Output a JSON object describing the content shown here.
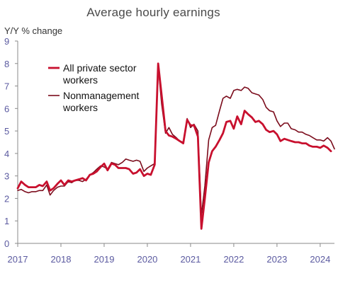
{
  "chart_data": {
    "type": "line",
    "title": "Average hourly earnings",
    "ylabel": "Y/Y % change",
    "xlabel": "",
    "ylim": [
      0,
      9
    ],
    "xlim": [
      2017.0,
      2024.33
    ],
    "y_ticks": [
      "0",
      "1",
      "2",
      "3",
      "4",
      "5",
      "6",
      "7",
      "8",
      "9"
    ],
    "x_ticks": [
      "2017",
      "2018",
      "2019",
      "2020",
      "2021",
      "2022",
      "2023",
      "2024"
    ],
    "grid": false,
    "legend_position": "top-left",
    "series": [
      {
        "name": "All private sector workers",
        "color": "#c8102e",
        "points": [
          [
            2017.0,
            2.45
          ],
          [
            2017.08,
            2.75
          ],
          [
            2017.17,
            2.6
          ],
          [
            2017.25,
            2.5
          ],
          [
            2017.33,
            2.5
          ],
          [
            2017.42,
            2.5
          ],
          [
            2017.5,
            2.6
          ],
          [
            2017.58,
            2.55
          ],
          [
            2017.67,
            2.75
          ],
          [
            2017.75,
            2.35
          ],
          [
            2017.83,
            2.45
          ],
          [
            2017.92,
            2.65
          ],
          [
            2018.0,
            2.8
          ],
          [
            2018.08,
            2.6
          ],
          [
            2018.17,
            2.8
          ],
          [
            2018.25,
            2.75
          ],
          [
            2018.33,
            2.8
          ],
          [
            2018.42,
            2.85
          ],
          [
            2018.5,
            2.9
          ],
          [
            2018.58,
            2.8
          ],
          [
            2018.67,
            3.05
          ],
          [
            2018.75,
            3.1
          ],
          [
            2018.83,
            3.2
          ],
          [
            2018.92,
            3.4
          ],
          [
            2019.0,
            3.55
          ],
          [
            2019.08,
            3.25
          ],
          [
            2019.17,
            3.55
          ],
          [
            2019.25,
            3.5
          ],
          [
            2019.33,
            3.35
          ],
          [
            2019.42,
            3.35
          ],
          [
            2019.5,
            3.35
          ],
          [
            2019.58,
            3.3
          ],
          [
            2019.67,
            3.1
          ],
          [
            2019.75,
            3.15
          ],
          [
            2019.83,
            3.3
          ],
          [
            2019.92,
            3.0
          ],
          [
            2020.0,
            3.1
          ],
          [
            2020.08,
            3.05
          ],
          [
            2020.17,
            3.5
          ],
          [
            2020.25,
            8.0
          ],
          [
            2020.33,
            6.6
          ],
          [
            2020.42,
            5.0
          ],
          [
            2020.5,
            4.8
          ],
          [
            2020.58,
            4.75
          ],
          [
            2020.67,
            4.65
          ],
          [
            2020.75,
            4.55
          ],
          [
            2020.83,
            4.45
          ],
          [
            2020.92,
            5.5
          ],
          [
            2021.0,
            5.25
          ],
          [
            2021.08,
            5.25
          ],
          [
            2021.17,
            4.75
          ],
          [
            2021.25,
            0.65
          ],
          [
            2021.33,
            2.0
          ],
          [
            2021.42,
            3.6
          ],
          [
            2021.5,
            4.1
          ],
          [
            2021.58,
            4.3
          ],
          [
            2021.67,
            4.6
          ],
          [
            2021.75,
            4.9
          ],
          [
            2021.83,
            5.4
          ],
          [
            2021.92,
            5.45
          ],
          [
            2022.0,
            5.1
          ],
          [
            2022.08,
            5.65
          ],
          [
            2022.17,
            5.3
          ],
          [
            2022.25,
            5.9
          ],
          [
            2022.33,
            5.75
          ],
          [
            2022.42,
            5.6
          ],
          [
            2022.5,
            5.4
          ],
          [
            2022.58,
            5.45
          ],
          [
            2022.67,
            5.3
          ],
          [
            2022.75,
            5.05
          ],
          [
            2022.83,
            4.95
          ],
          [
            2022.92,
            5.0
          ],
          [
            2023.0,
            4.85
          ],
          [
            2023.08,
            4.55
          ],
          [
            2023.17,
            4.65
          ],
          [
            2023.25,
            4.6
          ],
          [
            2023.33,
            4.55
          ],
          [
            2023.42,
            4.5
          ],
          [
            2023.5,
            4.5
          ],
          [
            2023.58,
            4.45
          ],
          [
            2023.67,
            4.45
          ],
          [
            2023.75,
            4.35
          ],
          [
            2023.83,
            4.3
          ],
          [
            2023.92,
            4.3
          ],
          [
            2024.0,
            4.25
          ],
          [
            2024.08,
            4.35
          ],
          [
            2024.17,
            4.25
          ],
          [
            2024.25,
            4.1
          ]
        ]
      },
      {
        "name": "Nonmanagement workers",
        "color": "#7b0c1c",
        "points": [
          [
            2017.0,
            2.35
          ],
          [
            2017.08,
            2.4
          ],
          [
            2017.17,
            2.3
          ],
          [
            2017.25,
            2.25
          ],
          [
            2017.33,
            2.3
          ],
          [
            2017.42,
            2.3
          ],
          [
            2017.5,
            2.35
          ],
          [
            2017.58,
            2.35
          ],
          [
            2017.67,
            2.6
          ],
          [
            2017.75,
            2.15
          ],
          [
            2017.83,
            2.35
          ],
          [
            2017.92,
            2.5
          ],
          [
            2018.0,
            2.55
          ],
          [
            2018.08,
            2.55
          ],
          [
            2018.17,
            2.75
          ],
          [
            2018.25,
            2.7
          ],
          [
            2018.33,
            2.8
          ],
          [
            2018.42,
            2.8
          ],
          [
            2018.5,
            2.75
          ],
          [
            2018.58,
            2.85
          ],
          [
            2018.67,
            3.05
          ],
          [
            2018.75,
            3.15
          ],
          [
            2018.83,
            3.3
          ],
          [
            2018.92,
            3.45
          ],
          [
            2019.0,
            3.4
          ],
          [
            2019.08,
            3.3
          ],
          [
            2019.17,
            3.6
          ],
          [
            2019.25,
            3.55
          ],
          [
            2019.33,
            3.5
          ],
          [
            2019.42,
            3.6
          ],
          [
            2019.5,
            3.75
          ],
          [
            2019.58,
            3.7
          ],
          [
            2019.67,
            3.65
          ],
          [
            2019.75,
            3.7
          ],
          [
            2019.83,
            3.65
          ],
          [
            2019.92,
            3.2
          ],
          [
            2020.0,
            3.35
          ],
          [
            2020.08,
            3.45
          ],
          [
            2020.17,
            3.55
          ],
          [
            2020.25,
            7.9
          ],
          [
            2020.33,
            6.2
          ],
          [
            2020.42,
            4.9
          ],
          [
            2020.5,
            5.15
          ],
          [
            2020.58,
            4.85
          ],
          [
            2020.67,
            4.7
          ],
          [
            2020.75,
            4.55
          ],
          [
            2020.83,
            4.5
          ],
          [
            2020.92,
            5.55
          ],
          [
            2021.0,
            5.15
          ],
          [
            2021.08,
            5.3
          ],
          [
            2021.17,
            5.0
          ],
          [
            2021.25,
            1.25
          ],
          [
            2021.33,
            2.55
          ],
          [
            2021.42,
            4.6
          ],
          [
            2021.5,
            5.15
          ],
          [
            2021.58,
            5.25
          ],
          [
            2021.67,
            5.9
          ],
          [
            2021.75,
            6.45
          ],
          [
            2021.83,
            6.55
          ],
          [
            2021.92,
            6.45
          ],
          [
            2022.0,
            6.8
          ],
          [
            2022.08,
            6.85
          ],
          [
            2022.17,
            6.8
          ],
          [
            2022.25,
            6.95
          ],
          [
            2022.33,
            6.9
          ],
          [
            2022.42,
            6.7
          ],
          [
            2022.5,
            6.65
          ],
          [
            2022.58,
            6.6
          ],
          [
            2022.67,
            6.4
          ],
          [
            2022.75,
            6.05
          ],
          [
            2022.83,
            5.9
          ],
          [
            2022.92,
            5.85
          ],
          [
            2023.0,
            5.45
          ],
          [
            2023.08,
            5.2
          ],
          [
            2023.17,
            5.35
          ],
          [
            2023.25,
            5.35
          ],
          [
            2023.33,
            5.1
          ],
          [
            2023.42,
            5.05
          ],
          [
            2023.5,
            4.95
          ],
          [
            2023.58,
            4.95
          ],
          [
            2023.67,
            4.85
          ],
          [
            2023.75,
            4.8
          ],
          [
            2023.83,
            4.7
          ],
          [
            2023.92,
            4.6
          ],
          [
            2024.0,
            4.6
          ],
          [
            2024.08,
            4.55
          ],
          [
            2024.17,
            4.7
          ],
          [
            2024.25,
            4.55
          ],
          [
            2024.33,
            4.2
          ]
        ]
      }
    ],
    "legend": [
      {
        "lines": [
          "All private sector",
          "workers"
        ],
        "color": "#c8102e",
        "bold": true
      },
      {
        "lines": [
          "Nonmanagement",
          "workers"
        ],
        "color": "#7b0c1c",
        "bold": false
      }
    ]
  }
}
